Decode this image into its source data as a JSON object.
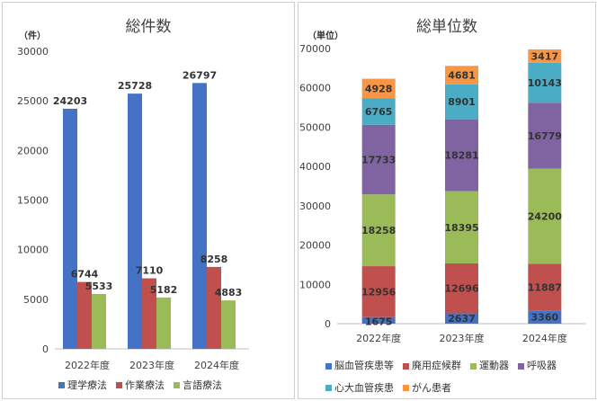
{
  "chart_data": [
    {
      "type": "bar",
      "title": "総件数",
      "unit_label": "（件）",
      "categories": [
        "2022年度",
        "2023年度",
        "2024年度"
      ],
      "ylim": [
        0,
        30000
      ],
      "yticks": [
        "0",
        "5000",
        "10000",
        "15000",
        "20000",
        "25000",
        "30000"
      ],
      "grid": false,
      "legend_position": "bottom",
      "series": [
        {
          "name": "理学療法",
          "color": "#4472C4",
          "values": [
            24203,
            25728,
            26797
          ]
        },
        {
          "name": "作業療法",
          "color": "#C0504D",
          "values": [
            6744,
            7110,
            8258
          ]
        },
        {
          "name": "言語療法",
          "color": "#9BBB59",
          "values": [
            5533,
            5182,
            4883
          ]
        }
      ]
    },
    {
      "type": "bar",
      "stacked": true,
      "title": "総単位数",
      "unit_label": "（単位）",
      "categories": [
        "2022年度",
        "2023年度",
        "2024年度"
      ],
      "ylim": [
        0,
        70000
      ],
      "yticks": [
        "0",
        "10000",
        "20000",
        "30000",
        "40000",
        "50000",
        "60000",
        "70000"
      ],
      "grid": false,
      "legend_position": "bottom",
      "series": [
        {
          "name": "脳血管疾患等",
          "color": "#4472C4",
          "values": [
            1675,
            2637,
            3360
          ]
        },
        {
          "name": "廃用症候群",
          "color": "#C0504D",
          "values": [
            12956,
            12696,
            11887
          ]
        },
        {
          "name": "運動器",
          "color": "#9BBB59",
          "values": [
            18258,
            18395,
            24200
          ]
        },
        {
          "name": "呼吸器",
          "color": "#8064A2",
          "values": [
            17733,
            18281,
            16779
          ]
        },
        {
          "name": "心大血管疾患",
          "color": "#4BACC6",
          "values": [
            6765,
            8901,
            10143
          ]
        },
        {
          "name": "がん患者",
          "color": "#F79646",
          "values": [
            4928,
            4681,
            3417
          ]
        }
      ]
    }
  ]
}
